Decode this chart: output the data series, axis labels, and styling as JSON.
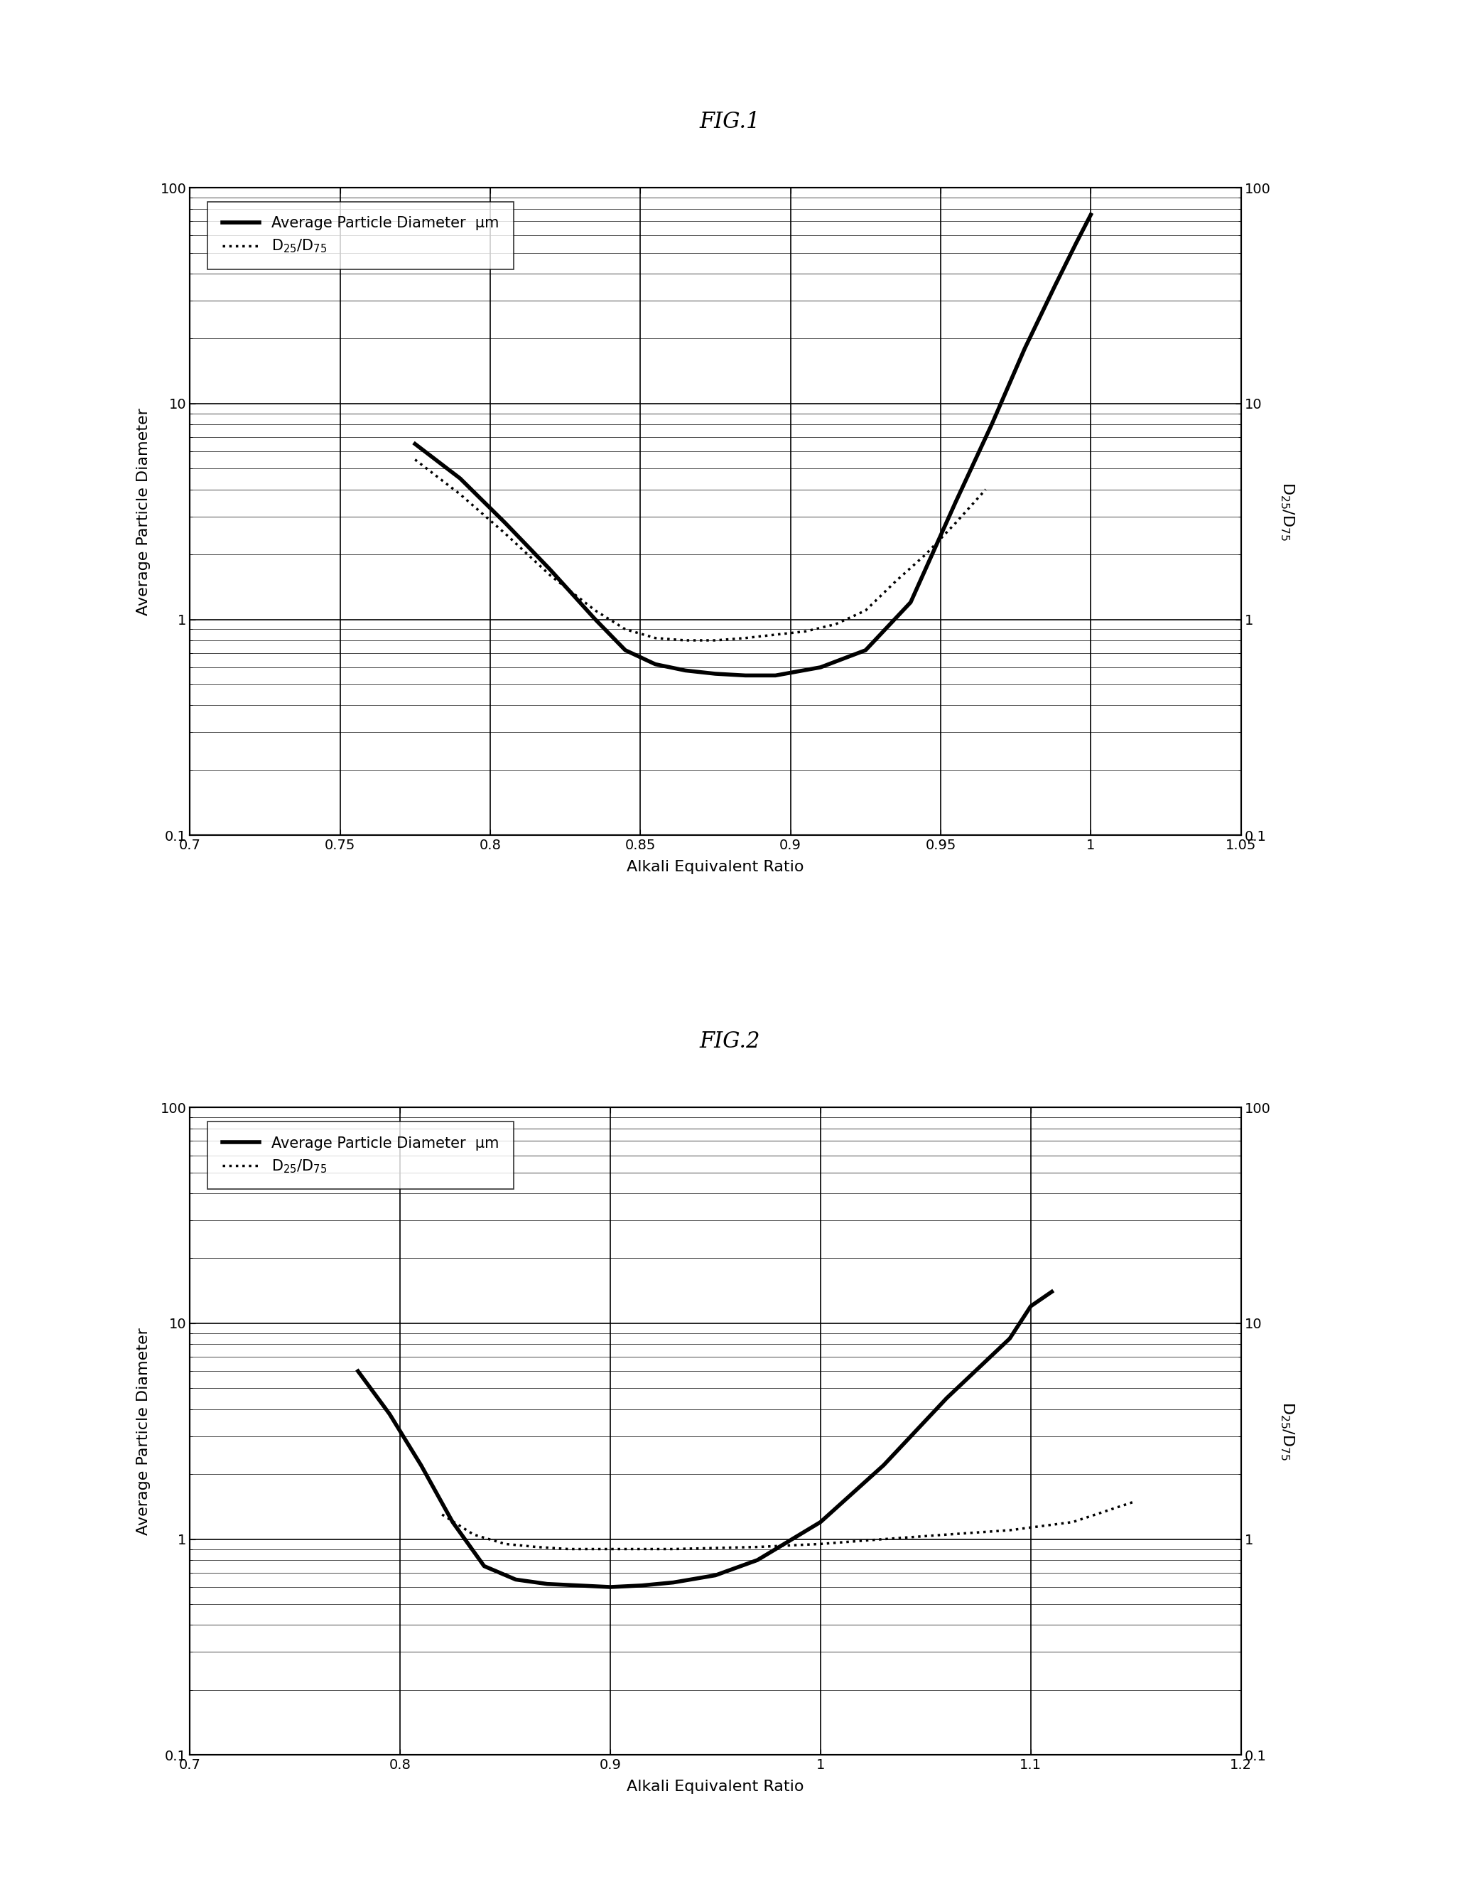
{
  "fig1": {
    "title": "FIG.1",
    "xlabel": "Alkali Equivalent Ratio",
    "ylabel_left": "Average Particle Diameter",
    "ylabel_right": "D$_{25}$/D$_{75}$",
    "xlim": [
      0.7,
      1.05
    ],
    "xticks": [
      0.7,
      0.75,
      0.8,
      0.85,
      0.9,
      0.95,
      1.0,
      1.05
    ],
    "xtick_labels": [
      "0.7",
      "0.75",
      "0.8",
      "0.85",
      "0.9",
      "0.95",
      "1",
      "1.05"
    ],
    "ylim": [
      0.1,
      100
    ],
    "legend_label_solid": "Average Particle Diameter  μm",
    "legend_label_dashed": "D$_{25}$/D$_{75}$",
    "solid_x": [
      0.775,
      0.79,
      0.805,
      0.82,
      0.835,
      0.845,
      0.855,
      0.865,
      0.875,
      0.885,
      0.895,
      0.91,
      0.925,
      0.94,
      0.955,
      0.967,
      0.978,
      0.988,
      0.995,
      1.0
    ],
    "solid_y": [
      6.5,
      4.5,
      2.8,
      1.7,
      1.0,
      0.72,
      0.62,
      0.58,
      0.56,
      0.55,
      0.55,
      0.6,
      0.72,
      1.2,
      3.5,
      8.0,
      18.0,
      35.0,
      55.0,
      75.0
    ],
    "dashed_x": [
      0.775,
      0.79,
      0.805,
      0.82,
      0.835,
      0.845,
      0.855,
      0.865,
      0.875,
      0.885,
      0.895,
      0.905,
      0.915,
      0.925,
      0.935,
      0.945,
      0.955,
      0.965
    ],
    "dashed_y": [
      5.5,
      3.8,
      2.5,
      1.6,
      1.1,
      0.9,
      0.82,
      0.8,
      0.8,
      0.82,
      0.85,
      0.88,
      0.95,
      1.1,
      1.5,
      2.0,
      2.8,
      4.0
    ]
  },
  "fig2": {
    "title": "FIG.2",
    "xlabel": "Alkali Equivalent Ratio",
    "ylabel_left": "Average Particle Diameter",
    "ylabel_right": "D$_{25}$/D$_{75}$",
    "xlim": [
      0.7,
      1.2
    ],
    "xticks": [
      0.7,
      0.8,
      0.9,
      1.0,
      1.1,
      1.2
    ],
    "xtick_labels": [
      "0.7",
      "0.8",
      "0.9",
      "1",
      "1.1",
      "1.2"
    ],
    "ylim": [
      0.1,
      100
    ],
    "legend_label_solid": "Average Particle Diameter  μm",
    "legend_label_dashed": "D$_{25}$/D$_{75}$",
    "solid_x": [
      0.78,
      0.795,
      0.81,
      0.825,
      0.84,
      0.855,
      0.87,
      0.885,
      0.9,
      0.915,
      0.93,
      0.95,
      0.97,
      1.0,
      1.03,
      1.06,
      1.09,
      1.1,
      1.11
    ],
    "solid_y": [
      6.0,
      3.8,
      2.2,
      1.2,
      0.75,
      0.65,
      0.62,
      0.61,
      0.6,
      0.61,
      0.63,
      0.68,
      0.8,
      1.2,
      2.2,
      4.5,
      8.5,
      12.0,
      14.0
    ],
    "dashed_x": [
      0.82,
      0.835,
      0.85,
      0.865,
      0.88,
      0.895,
      0.91,
      0.93,
      0.95,
      0.97,
      1.0,
      1.03,
      1.06,
      1.09,
      1.12,
      1.15
    ],
    "dashed_y": [
      1.3,
      1.05,
      0.95,
      0.92,
      0.9,
      0.9,
      0.9,
      0.9,
      0.91,
      0.92,
      0.95,
      1.0,
      1.05,
      1.1,
      1.2,
      1.5
    ]
  },
  "background_color": "#ffffff",
  "line_color": "#000000",
  "title_fontsize": 22,
  "label_fontsize": 16,
  "tick_fontsize": 14,
  "legend_fontsize": 15,
  "solid_lw": 4.0,
  "dashed_lw": 2.5
}
